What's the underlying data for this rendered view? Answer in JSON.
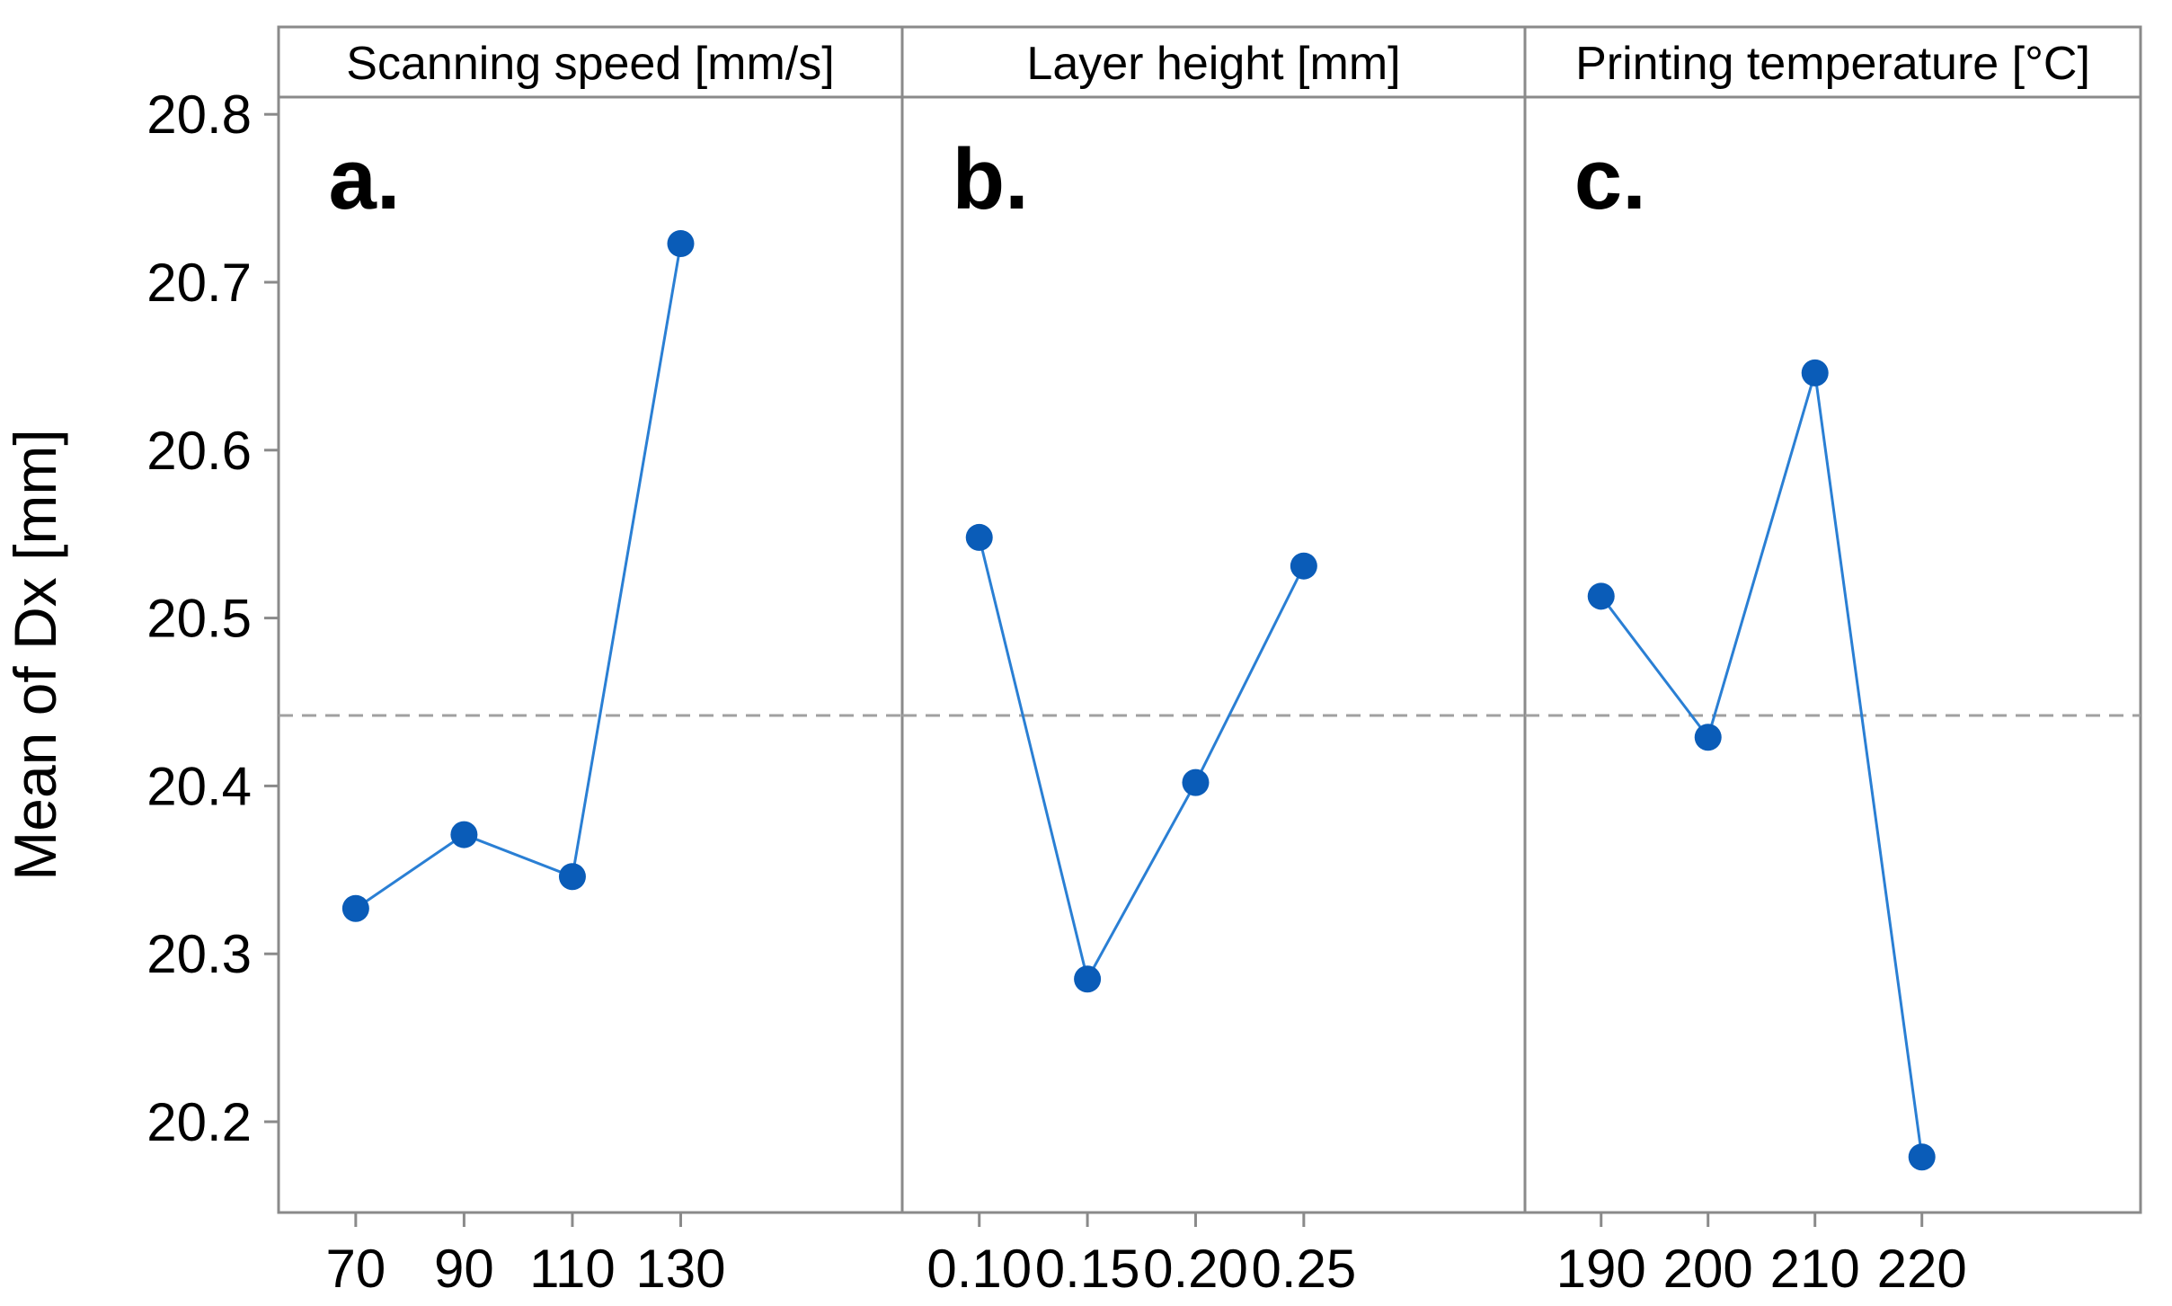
{
  "chart_data": {
    "type": "line",
    "ylabel": "Mean of Dx [mm]",
    "ylim": [
      20.15,
      20.81
    ],
    "yticks": [
      "20.2",
      "20.3",
      "20.4",
      "20.5",
      "20.6",
      "20.7",
      "20.8"
    ],
    "reference_mean": 20.442,
    "colors": {
      "series": "#0a5cb8",
      "line": "#2a7fd4",
      "frame": "#8a8a8a",
      "mean": "#a0a0a0"
    },
    "panels": [
      {
        "letter": "a.",
        "title": "Scanning speed [mm/s]",
        "categories": [
          "70",
          "90",
          "110",
          "130"
        ],
        "values": [
          20.327,
          20.371,
          20.346,
          20.723
        ]
      },
      {
        "letter": "b.",
        "title": "Layer height [mm]",
        "categories": [
          "0.10",
          "0.15",
          "0.20",
          "0.25"
        ],
        "values": [
          20.548,
          20.285,
          20.402,
          20.531
        ]
      },
      {
        "letter": "c.",
        "title": "Printing temperature [°C]",
        "categories": [
          "190",
          "200",
          "210",
          "220"
        ],
        "values": [
          20.513,
          20.429,
          20.646,
          20.179
        ]
      }
    ]
  }
}
